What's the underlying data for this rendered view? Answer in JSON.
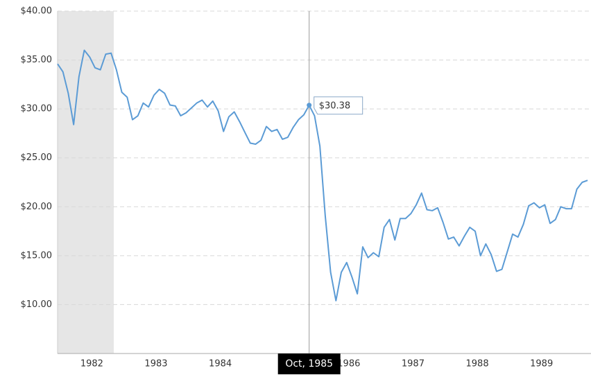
{
  "chart_data": {
    "type": "line",
    "x": [
      1981.917,
      1982,
      1982.083,
      1982.167,
      1982.25,
      1982.333,
      1982.417,
      1982.5,
      1982.583,
      1982.667,
      1982.75,
      1982.833,
      1982.917,
      1983,
      1983.083,
      1983.167,
      1983.25,
      1983.333,
      1983.417,
      1983.5,
      1983.583,
      1983.667,
      1983.75,
      1983.833,
      1983.917,
      1984,
      1984.083,
      1984.167,
      1984.25,
      1984.333,
      1984.417,
      1984.5,
      1984.583,
      1984.667,
      1984.75,
      1984.833,
      1984.917,
      1985,
      1985.083,
      1985.167,
      1985.25,
      1985.333,
      1985.417,
      1985.5,
      1985.583,
      1985.667,
      1985.75,
      1985.833,
      1985.917,
      1986,
      1986.083,
      1986.167,
      1986.25,
      1986.333,
      1986.417,
      1986.5,
      1986.583,
      1986.667,
      1986.75,
      1986.833,
      1986.917,
      1987,
      1987.083,
      1987.167,
      1987.25,
      1987.333,
      1987.417,
      1987.5,
      1987.583,
      1987.667,
      1987.75,
      1987.833,
      1987.917,
      1988,
      1988.083,
      1988.167,
      1988.25,
      1988.333,
      1988.417,
      1988.5,
      1988.583,
      1988.667,
      1988.75,
      1988.833,
      1988.917,
      1989,
      1989.083,
      1989.167,
      1989.25,
      1989.333,
      1989.417,
      1989.5,
      1989.583,
      1989.667,
      1989.75,
      1989.833,
      1989.917,
      1990,
      1990.083,
      1990.167
    ],
    "series": [
      {
        "color": "#5b9bd5",
        "values": [
          34.6,
          33.8,
          31.6,
          28.4,
          33.3,
          36.0,
          35.3,
          34.2,
          34.0,
          35.6,
          35.7,
          34.0,
          31.7,
          31.2,
          28.9,
          29.3,
          30.6,
          30.2,
          31.4,
          32.0,
          31.6,
          30.4,
          30.3,
          29.3,
          29.6,
          30.1,
          30.6,
          30.9,
          30.2,
          30.8,
          29.8,
          27.7,
          29.2,
          29.7,
          28.7,
          27.6,
          26.5,
          26.4,
          26.8,
          28.2,
          27.7,
          27.9,
          26.9,
          27.1,
          28.1,
          28.9,
          29.4,
          30.38,
          29.3,
          26.2,
          19.1,
          13.3,
          10.4,
          13.3,
          14.3,
          12.8,
          11.1,
          15.9,
          14.8,
          15.3,
          14.9,
          17.9,
          18.7,
          16.6,
          18.8,
          18.8,
          19.3,
          20.2,
          21.4,
          19.7,
          19.6,
          19.9,
          18.4,
          16.7,
          16.9,
          16.0,
          17.0,
          17.9,
          17.5,
          15.0,
          16.2,
          15.1,
          13.4,
          13.6,
          15.4,
          17.2,
          16.9,
          18.2,
          20.1,
          20.4,
          19.9,
          20.2,
          18.3,
          18.7,
          20.0,
          19.8,
          19.8,
          21.8,
          22.5,
          22.7
        ]
      }
    ],
    "xlim": [
      1981.917,
      1990.22
    ],
    "ylim": [
      5,
      40
    ],
    "xticks": [
      {
        "value": 1982.45,
        "label": "1982"
      },
      {
        "value": 1983.45,
        "label": "1983"
      },
      {
        "value": 1984.45,
        "label": "1984"
      },
      {
        "value": 1986.45,
        "label": "1986"
      },
      {
        "value": 1987.45,
        "label": "1987"
      },
      {
        "value": 1988.45,
        "label": "1988"
      },
      {
        "value": 1989.45,
        "label": "1989"
      }
    ],
    "yticks": [
      {
        "value": 10,
        "label": "$10.00"
      },
      {
        "value": 15,
        "label": "$15.00"
      },
      {
        "value": 20,
        "label": "$20.00"
      },
      {
        "value": 25,
        "label": "$25.00"
      },
      {
        "value": 30,
        "label": "$30.00"
      },
      {
        "value": 35,
        "label": "$35.00"
      },
      {
        "value": 40,
        "label": "$40.00"
      }
    ],
    "grid": true,
    "shaded_range": [
      1981.917,
      1982.792
    ],
    "highlight": {
      "x": 1985.833,
      "value": 30.38,
      "value_label": "$30.38",
      "x_label": "Oct, 1985"
    }
  }
}
